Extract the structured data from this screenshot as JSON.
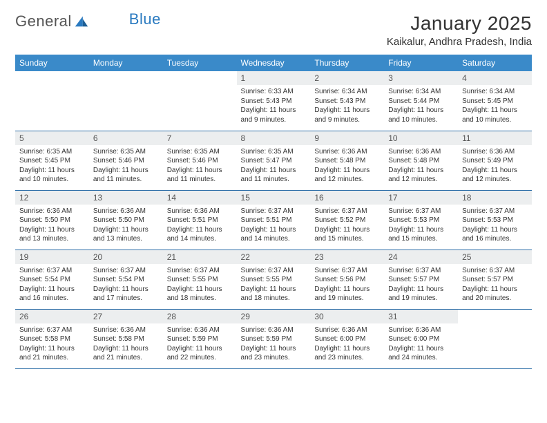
{
  "logo": {
    "text1": "General",
    "text2": "Blue"
  },
  "title": "January 2025",
  "location": "Kaikalur, Andhra Pradesh, India",
  "colors": {
    "header_bg": "#3a8ac9",
    "header_text": "#ffffff",
    "daynum_bg": "#eceeef",
    "rule": "#2e6fa8",
    "logo_blue": "#2a7ac0"
  },
  "typography": {
    "title_fontsize": 28,
    "location_fontsize": 15,
    "dayhead_fontsize": 12,
    "daynum_fontsize": 12,
    "info_fontsize": 10
  },
  "day_names": [
    "Sunday",
    "Monday",
    "Tuesday",
    "Wednesday",
    "Thursday",
    "Friday",
    "Saturday"
  ],
  "weeks": [
    [
      {
        "n": "",
        "sr": "",
        "ss": "",
        "dl": ""
      },
      {
        "n": "",
        "sr": "",
        "ss": "",
        "dl": ""
      },
      {
        "n": "",
        "sr": "",
        "ss": "",
        "dl": ""
      },
      {
        "n": "1",
        "sr": "Sunrise: 6:33 AM",
        "ss": "Sunset: 5:43 PM",
        "dl": "Daylight: 11 hours and 9 minutes."
      },
      {
        "n": "2",
        "sr": "Sunrise: 6:34 AM",
        "ss": "Sunset: 5:43 PM",
        "dl": "Daylight: 11 hours and 9 minutes."
      },
      {
        "n": "3",
        "sr": "Sunrise: 6:34 AM",
        "ss": "Sunset: 5:44 PM",
        "dl": "Daylight: 11 hours and 10 minutes."
      },
      {
        "n": "4",
        "sr": "Sunrise: 6:34 AM",
        "ss": "Sunset: 5:45 PM",
        "dl": "Daylight: 11 hours and 10 minutes."
      }
    ],
    [
      {
        "n": "5",
        "sr": "Sunrise: 6:35 AM",
        "ss": "Sunset: 5:45 PM",
        "dl": "Daylight: 11 hours and 10 minutes."
      },
      {
        "n": "6",
        "sr": "Sunrise: 6:35 AM",
        "ss": "Sunset: 5:46 PM",
        "dl": "Daylight: 11 hours and 11 minutes."
      },
      {
        "n": "7",
        "sr": "Sunrise: 6:35 AM",
        "ss": "Sunset: 5:46 PM",
        "dl": "Daylight: 11 hours and 11 minutes."
      },
      {
        "n": "8",
        "sr": "Sunrise: 6:35 AM",
        "ss": "Sunset: 5:47 PM",
        "dl": "Daylight: 11 hours and 11 minutes."
      },
      {
        "n": "9",
        "sr": "Sunrise: 6:36 AM",
        "ss": "Sunset: 5:48 PM",
        "dl": "Daylight: 11 hours and 12 minutes."
      },
      {
        "n": "10",
        "sr": "Sunrise: 6:36 AM",
        "ss": "Sunset: 5:48 PM",
        "dl": "Daylight: 11 hours and 12 minutes."
      },
      {
        "n": "11",
        "sr": "Sunrise: 6:36 AM",
        "ss": "Sunset: 5:49 PM",
        "dl": "Daylight: 11 hours and 12 minutes."
      }
    ],
    [
      {
        "n": "12",
        "sr": "Sunrise: 6:36 AM",
        "ss": "Sunset: 5:50 PM",
        "dl": "Daylight: 11 hours and 13 minutes."
      },
      {
        "n": "13",
        "sr": "Sunrise: 6:36 AM",
        "ss": "Sunset: 5:50 PM",
        "dl": "Daylight: 11 hours and 13 minutes."
      },
      {
        "n": "14",
        "sr": "Sunrise: 6:36 AM",
        "ss": "Sunset: 5:51 PM",
        "dl": "Daylight: 11 hours and 14 minutes."
      },
      {
        "n": "15",
        "sr": "Sunrise: 6:37 AM",
        "ss": "Sunset: 5:51 PM",
        "dl": "Daylight: 11 hours and 14 minutes."
      },
      {
        "n": "16",
        "sr": "Sunrise: 6:37 AM",
        "ss": "Sunset: 5:52 PM",
        "dl": "Daylight: 11 hours and 15 minutes."
      },
      {
        "n": "17",
        "sr": "Sunrise: 6:37 AM",
        "ss": "Sunset: 5:53 PM",
        "dl": "Daylight: 11 hours and 15 minutes."
      },
      {
        "n": "18",
        "sr": "Sunrise: 6:37 AM",
        "ss": "Sunset: 5:53 PM",
        "dl": "Daylight: 11 hours and 16 minutes."
      }
    ],
    [
      {
        "n": "19",
        "sr": "Sunrise: 6:37 AM",
        "ss": "Sunset: 5:54 PM",
        "dl": "Daylight: 11 hours and 16 minutes."
      },
      {
        "n": "20",
        "sr": "Sunrise: 6:37 AM",
        "ss": "Sunset: 5:54 PM",
        "dl": "Daylight: 11 hours and 17 minutes."
      },
      {
        "n": "21",
        "sr": "Sunrise: 6:37 AM",
        "ss": "Sunset: 5:55 PM",
        "dl": "Daylight: 11 hours and 18 minutes."
      },
      {
        "n": "22",
        "sr": "Sunrise: 6:37 AM",
        "ss": "Sunset: 5:55 PM",
        "dl": "Daylight: 11 hours and 18 minutes."
      },
      {
        "n": "23",
        "sr": "Sunrise: 6:37 AM",
        "ss": "Sunset: 5:56 PM",
        "dl": "Daylight: 11 hours and 19 minutes."
      },
      {
        "n": "24",
        "sr": "Sunrise: 6:37 AM",
        "ss": "Sunset: 5:57 PM",
        "dl": "Daylight: 11 hours and 19 minutes."
      },
      {
        "n": "25",
        "sr": "Sunrise: 6:37 AM",
        "ss": "Sunset: 5:57 PM",
        "dl": "Daylight: 11 hours and 20 minutes."
      }
    ],
    [
      {
        "n": "26",
        "sr": "Sunrise: 6:37 AM",
        "ss": "Sunset: 5:58 PM",
        "dl": "Daylight: 11 hours and 21 minutes."
      },
      {
        "n": "27",
        "sr": "Sunrise: 6:36 AM",
        "ss": "Sunset: 5:58 PM",
        "dl": "Daylight: 11 hours and 21 minutes."
      },
      {
        "n": "28",
        "sr": "Sunrise: 6:36 AM",
        "ss": "Sunset: 5:59 PM",
        "dl": "Daylight: 11 hours and 22 minutes."
      },
      {
        "n": "29",
        "sr": "Sunrise: 6:36 AM",
        "ss": "Sunset: 5:59 PM",
        "dl": "Daylight: 11 hours and 23 minutes."
      },
      {
        "n": "30",
        "sr": "Sunrise: 6:36 AM",
        "ss": "Sunset: 6:00 PM",
        "dl": "Daylight: 11 hours and 23 minutes."
      },
      {
        "n": "31",
        "sr": "Sunrise: 6:36 AM",
        "ss": "Sunset: 6:00 PM",
        "dl": "Daylight: 11 hours and 24 minutes."
      },
      {
        "n": "",
        "sr": "",
        "ss": "",
        "dl": ""
      }
    ]
  ]
}
